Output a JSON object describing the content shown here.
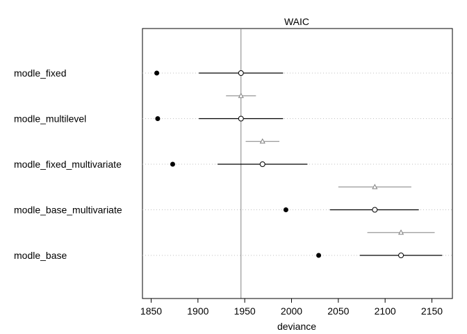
{
  "chart_data": {
    "type": "dotplot",
    "title": "WAIC",
    "xlabel": "deviance",
    "xlim": [
      1845,
      2170
    ],
    "xticks": [
      "1850",
      "1900",
      "1950",
      "2000",
      "2050",
      "2100",
      "2150"
    ],
    "reference_line_x": 1946,
    "models": [
      {
        "name": "modle_fixed",
        "in_sample": 1856,
        "waic": 1946,
        "lo": 1901,
        "hi": 1991
      },
      {
        "name": "modle_multilevel",
        "in_sample": 1857,
        "waic": 1946,
        "lo": 1901,
        "hi": 1991
      },
      {
        "name": "modle_fixed_multivariate",
        "in_sample": 1873,
        "waic": 1969,
        "lo": 1921,
        "hi": 2017
      },
      {
        "name": "modle_base_multivariate",
        "in_sample": 1994,
        "waic": 2089,
        "lo": 2041,
        "hi": 2136
      },
      {
        "name": "modle_base",
        "in_sample": 2029,
        "waic": 2117,
        "lo": 2073,
        "hi": 2161
      }
    ],
    "differences": [
      {
        "waic": 1946,
        "lo": 1930,
        "hi": 1962
      },
      {
        "waic": 1969,
        "lo": 1951,
        "hi": 1987
      },
      {
        "waic": 2089,
        "lo": 2050,
        "hi": 2128
      },
      {
        "waic": 2117,
        "lo": 2081,
        "hi": 2153
      }
    ]
  }
}
